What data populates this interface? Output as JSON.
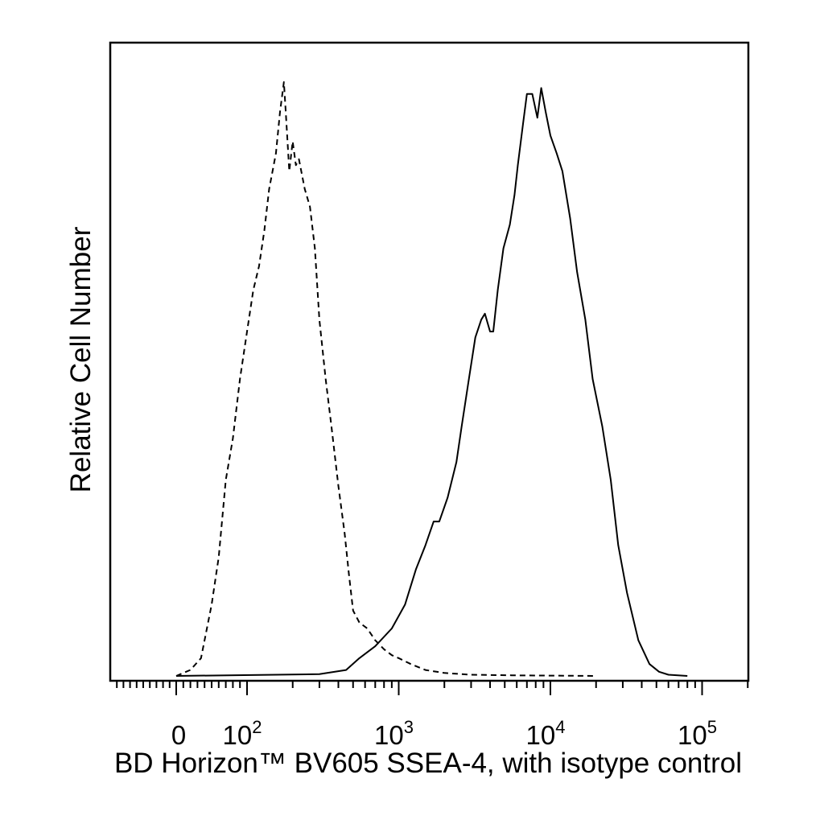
{
  "chart_data": {
    "type": "line",
    "title": "",
    "xlabel": "BD Horizon™ BV605 SSEA-4, with isotype control",
    "ylabel": "Relative Cell Number",
    "x_scale": "biexponential",
    "xlim": [
      -100,
      200000
    ],
    "ylim": [
      0,
      1
    ],
    "grid": false,
    "legend": "none",
    "x_ticks": [
      {
        "value": 0,
        "base": "0",
        "exp": ""
      },
      {
        "value": 100,
        "base": "10",
        "exp": "2"
      },
      {
        "value": 1000,
        "base": "10",
        "exp": "3"
      },
      {
        "value": 10000,
        "base": "10",
        "exp": "4"
      },
      {
        "value": 100000,
        "base": "10",
        "exp": "5"
      }
    ],
    "series": [
      {
        "style": "dashed",
        "color": "#000000",
        "points": [
          [
            0,
            0
          ],
          [
            20,
            0.01
          ],
          [
            35,
            0.03
          ],
          [
            50,
            0.12
          ],
          [
            60,
            0.2
          ],
          [
            70,
            0.33
          ],
          [
            80,
            0.4
          ],
          [
            90,
            0.5
          ],
          [
            100,
            0.58
          ],
          [
            110,
            0.65
          ],
          [
            120,
            0.69
          ],
          [
            130,
            0.75
          ],
          [
            140,
            0.82
          ],
          [
            155,
            0.88
          ],
          [
            165,
            0.95
          ],
          [
            175,
            1.0
          ],
          [
            180,
            0.95
          ],
          [
            190,
            0.85
          ],
          [
            200,
            0.9
          ],
          [
            210,
            0.86
          ],
          [
            220,
            0.87
          ],
          [
            240,
            0.82
          ],
          [
            260,
            0.79
          ],
          [
            280,
            0.72
          ],
          [
            300,
            0.6
          ],
          [
            330,
            0.5
          ],
          [
            360,
            0.42
          ],
          [
            400,
            0.32
          ],
          [
            440,
            0.24
          ],
          [
            470,
            0.17
          ],
          [
            500,
            0.11
          ],
          [
            550,
            0.09
          ],
          [
            620,
            0.08
          ],
          [
            700,
            0.06
          ],
          [
            800,
            0.045
          ],
          [
            900,
            0.035
          ],
          [
            1000,
            0.03
          ],
          [
            1200,
            0.02
          ],
          [
            1500,
            0.01
          ],
          [
            2000,
            0.005
          ],
          [
            3000,
            0.002
          ],
          [
            6000,
            0.001
          ],
          [
            20000,
            0
          ]
        ]
      },
      {
        "style": "solid",
        "color": "#000000",
        "points": [
          [
            0,
            0
          ],
          [
            300,
            0.003
          ],
          [
            450,
            0.01
          ],
          [
            550,
            0.03
          ],
          [
            700,
            0.05
          ],
          [
            900,
            0.08
          ],
          [
            1100,
            0.12
          ],
          [
            1300,
            0.18
          ],
          [
            1500,
            0.22
          ],
          [
            1700,
            0.26
          ],
          [
            1850,
            0.26
          ],
          [
            2100,
            0.3
          ],
          [
            2400,
            0.36
          ],
          [
            2600,
            0.42
          ],
          [
            2900,
            0.5
          ],
          [
            3200,
            0.57
          ],
          [
            3500,
            0.6
          ],
          [
            3700,
            0.61
          ],
          [
            4000,
            0.58
          ],
          [
            4200,
            0.58
          ],
          [
            4500,
            0.65
          ],
          [
            4900,
            0.72
          ],
          [
            5400,
            0.76
          ],
          [
            5800,
            0.81
          ],
          [
            6100,
            0.86
          ],
          [
            6600,
            0.93
          ],
          [
            7000,
            0.98
          ],
          [
            7600,
            0.98
          ],
          [
            8200,
            0.94
          ],
          [
            8700,
            0.99
          ],
          [
            9300,
            0.95
          ],
          [
            10000,
            0.91
          ],
          [
            11000,
            0.88
          ],
          [
            12000,
            0.85
          ],
          [
            13500,
            0.77
          ],
          [
            15000,
            0.68
          ],
          [
            17000,
            0.6
          ],
          [
            19000,
            0.5
          ],
          [
            22000,
            0.42
          ],
          [
            25000,
            0.33
          ],
          [
            28000,
            0.22
          ],
          [
            32000,
            0.14
          ],
          [
            38000,
            0.06
          ],
          [
            45000,
            0.02
          ],
          [
            52000,
            0.007
          ],
          [
            60000,
            0.002
          ],
          [
            80000,
            0
          ]
        ]
      }
    ]
  }
}
